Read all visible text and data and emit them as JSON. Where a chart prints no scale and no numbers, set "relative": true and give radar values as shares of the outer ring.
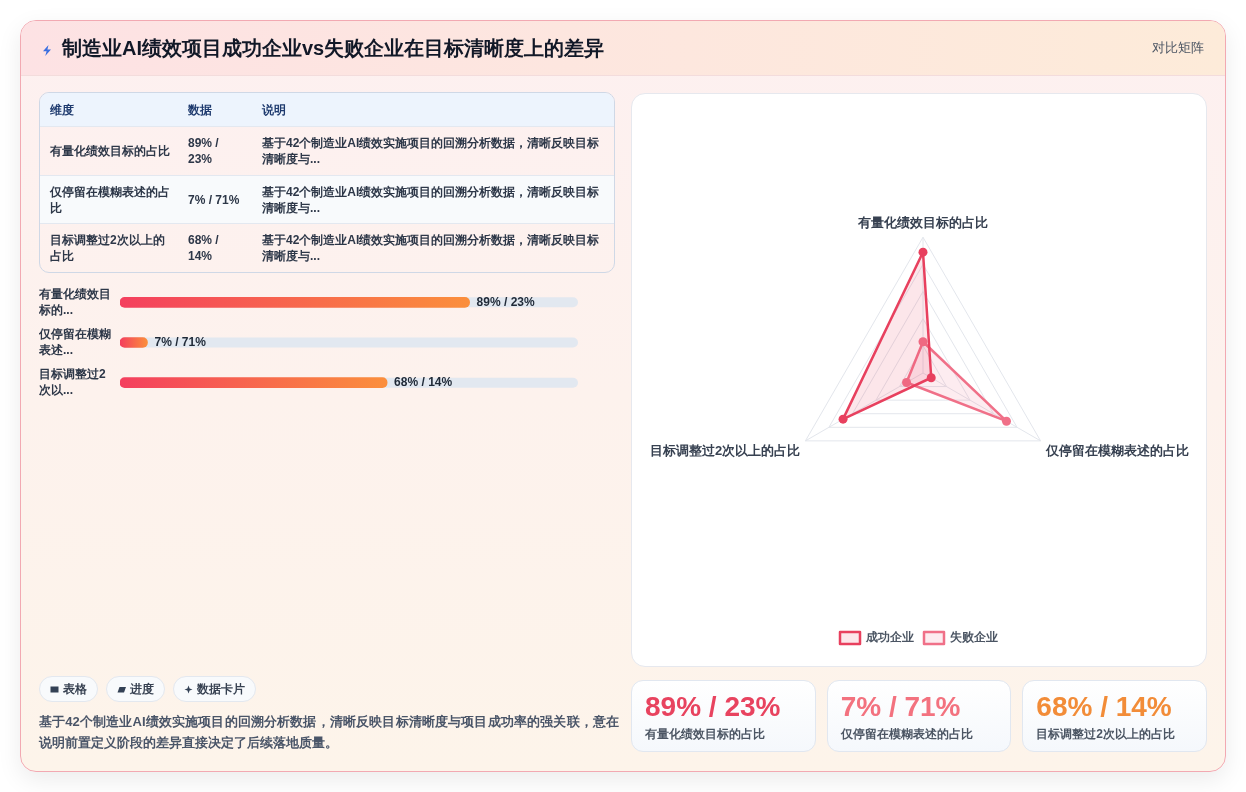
{
  "chart_data": [
    {
      "type": "other",
      "title": "制造业AI绩效项目成功企业vs失败企业在目标清晰度上的差异",
      "annotations": [
        "对比矩阵"
      ]
    },
    {
      "type": "other",
      "annotations": [
        "维度",
        "数据",
        "说明",
        "有量化绩效目标的占比",
        "89% / 23%",
        "基于42个制造业AI绩效实施项目的回溯分析数据，清晰反映目标清晰度与...",
        "仅停留在模糊表述的占比",
        "7% / 71%",
        "基于42个制造业AI绩效实施项目的回溯分析数据，清晰反映目标清晰度与...",
        "目标调整过2次以上的占比",
        "68% / 14%",
        "基于42个制造业AI绩效实施项目的回溯分析数据，清晰反映目标清晰度与..."
      ]
    },
    {
      "type": "bar",
      "orientation": "horizontal",
      "categories": [
        "有量化绩效目标的...",
        "仅停留在模糊表述...",
        "目标调整过2次以..."
      ],
      "values": [
        89,
        7,
        68
      ],
      "value_labels": [
        "89% / 23%",
        "7% / 71%",
        "68% / 14%"
      ],
      "color": "#f43f5e"
    },
    {
      "type": "other",
      "categories": [
        "表格",
        "进度",
        "数据卡片"
      ],
      "annotations": [
        "基于42个制造业AI绩效实施项目的回溯分析数据，清晰反映目标清晰度与项目成功率的强关联，意在说明前置定义阶段的差异直接决定了后续落地质量。"
      ]
    },
    {
      "type": "radar",
      "relative": true,
      "categories": [
        "有量化绩效目标的占比",
        "仅停留在模糊表述的占比",
        "目标调整过2次以上的占比"
      ],
      "series": [
        {
          "name": "成功企业",
          "color": "#e8405e",
          "values": [
            0.89,
            0.07,
            0.68
          ]
        },
        {
          "name": "失败企业",
          "color": "#f07088",
          "values": [
            0.23,
            0.71,
            0.14
          ]
        }
      ],
      "legend": "bottom",
      "grid": true,
      "marker": "circle"
    },
    {
      "type": "other",
      "categories": [
        "有量化绩效目标的占比",
        "仅停留在模糊表述的占比",
        "目标调整过2次以上的占比"
      ],
      "value_labels": [
        "89% / 23%",
        "7% / 71%",
        "68% / 14%"
      ]
    }
  ]
}
